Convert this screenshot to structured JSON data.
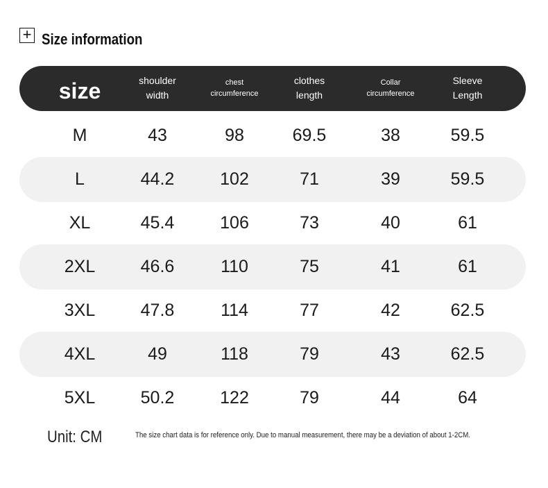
{
  "header": {
    "title": "Size information"
  },
  "table": {
    "headers": [
      [
        "size"
      ],
      [
        "shoulder",
        "width"
      ],
      [
        "chest",
        "circumference"
      ],
      [
        "clothes",
        "length"
      ],
      [
        "Collar",
        "circumference"
      ],
      [
        "Sleeve",
        "Length"
      ]
    ],
    "rows": [
      [
        "M",
        "43",
        "98",
        "69.5",
        "38",
        "59.5"
      ],
      [
        "L",
        "44.2",
        "102",
        "71",
        "39",
        "59.5"
      ],
      [
        "XL",
        "45.4",
        "106",
        "73",
        "40",
        "61"
      ],
      [
        "2XL",
        "46.6",
        "110",
        "75",
        "41",
        "61"
      ],
      [
        "3XL",
        "47.8",
        "114",
        "77",
        "42",
        "62.5"
      ],
      [
        "4XL",
        "49",
        "118",
        "79",
        "43",
        "62.5"
      ],
      [
        "5XL",
        "50.2",
        "122",
        "79",
        "44",
        "64"
      ]
    ]
  },
  "footer": {
    "unit": "Unit: CM",
    "note": "The size chart data is for reference only. Due to manual measurement, there may be a deviation of about 1-2CM."
  }
}
